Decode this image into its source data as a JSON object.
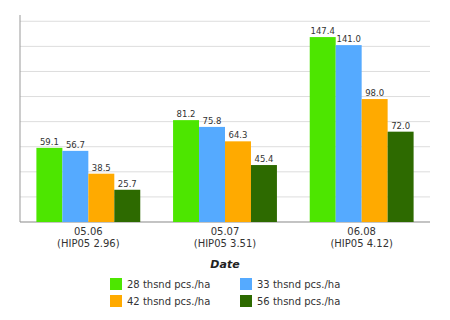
{
  "chart_data": {
    "type": "bar",
    "xlabel": "Date",
    "categories": [
      "05.06\n(HIP05 2.96)",
      "05.07\n(HIP05 3.51)",
      "06.08\n(HIP05 4.12)"
    ],
    "series": [
      {
        "name": "28 thsnd pcs./ha",
        "color": "#4de600",
        "values": [
          59.1,
          81.2,
          147.4
        ],
        "value_labels": [
          "59.1",
          "81.2",
          "147.4"
        ]
      },
      {
        "name": "33 thsnd pcs./ha",
        "color": "#55aaff",
        "values": [
          56.7,
          75.8,
          141.0
        ],
        "value_labels": [
          "56.7",
          "75.8",
          "141.0"
        ]
      },
      {
        "name": "42 thsnd pcs./ha",
        "color": "#ffaa00",
        "values": [
          38.5,
          64.3,
          98.0
        ],
        "value_labels": [
          "38.5",
          "64.3",
          "98.0"
        ]
      },
      {
        "name": "56 thsnd pcs./ha",
        "color": "#2d6a00",
        "values": [
          25.7,
          45.4,
          72.0
        ],
        "value_labels": [
          "25.7",
          "45.4",
          "72.0"
        ]
      }
    ],
    "ylim": [
      0,
      165
    ],
    "yticks": [
      0,
      20,
      40,
      60,
      80,
      100,
      120,
      140,
      160
    ],
    "grid": true,
    "legend": "bottom",
    "data_labels": true,
    "tick_labels": "x"
  }
}
